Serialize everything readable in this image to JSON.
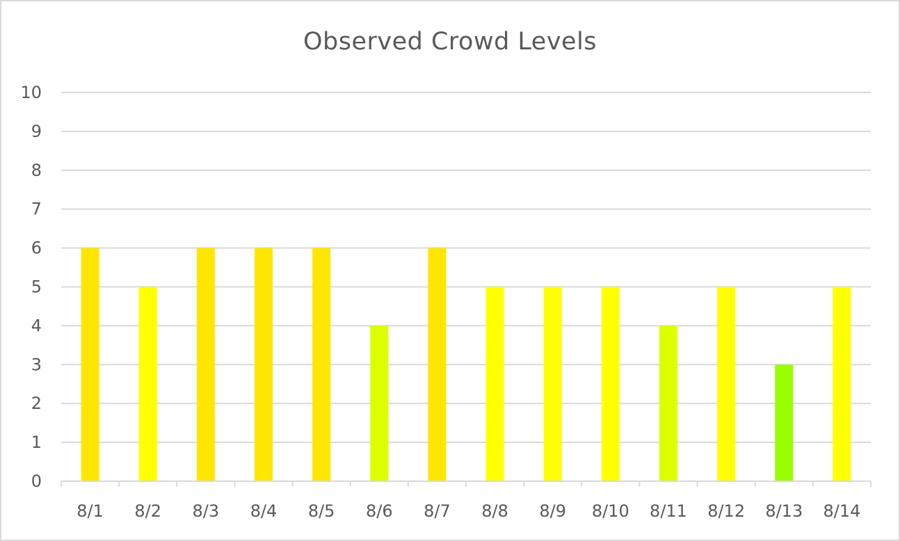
{
  "chart_data": {
    "type": "bar",
    "title": "Observed Crowd Levels",
    "xlabel": "",
    "ylabel": "",
    "categories": [
      "8/1",
      "8/2",
      "8/3",
      "8/4",
      "8/5",
      "8/6",
      "8/7",
      "8/8",
      "8/9",
      "8/10",
      "8/11",
      "8/12",
      "8/13",
      "8/14"
    ],
    "values": [
      6,
      5,
      6,
      6,
      6,
      4,
      6,
      5,
      5,
      5,
      4,
      5,
      3,
      5
    ],
    "ylim": [
      0,
      10
    ],
    "yticks": [
      0,
      1,
      2,
      3,
      4,
      5,
      6,
      7,
      8,
      9,
      10
    ],
    "grid": true,
    "legend": "none",
    "level_colors": {
      "3": "#99ff00",
      "4": "#ddff00",
      "5": "#ffff00",
      "6": "#ffe600"
    }
  }
}
